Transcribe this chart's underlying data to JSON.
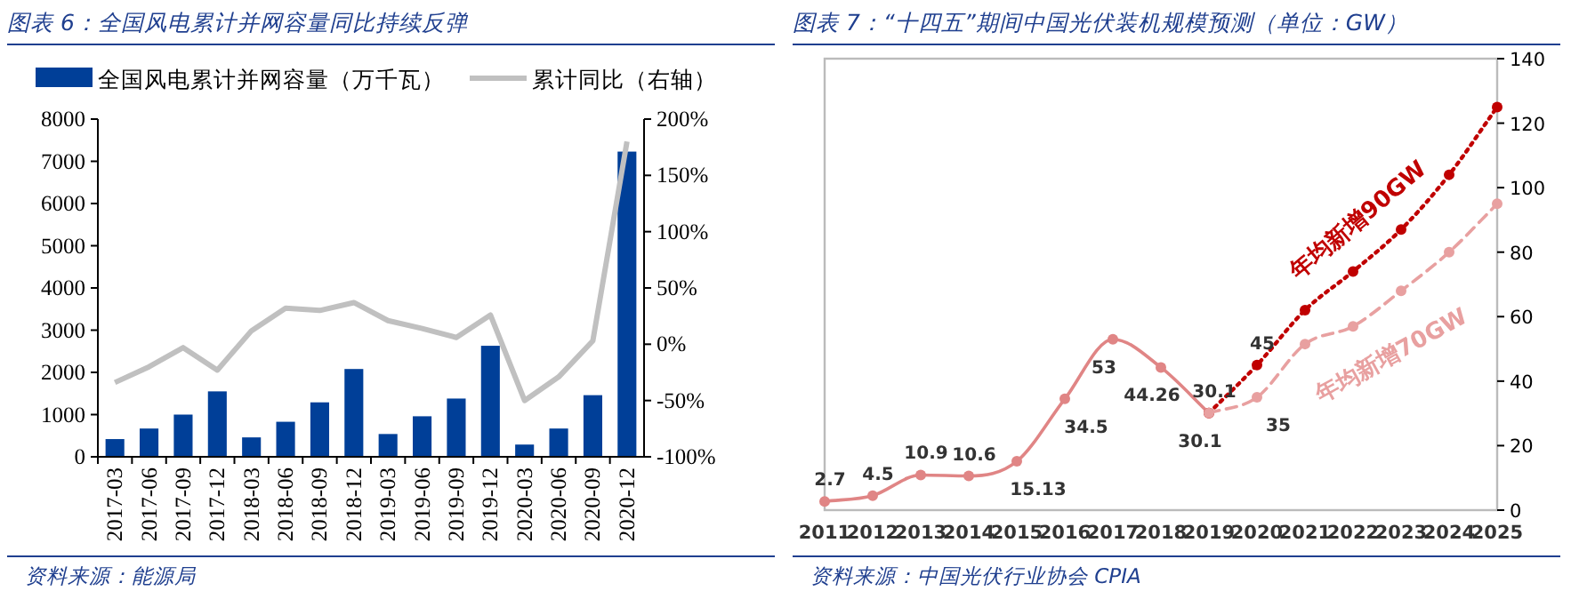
{
  "chart_data": [
    {
      "type": "bar",
      "title": "图表 6：全国风电累计并网容量同比持续反弹",
      "annotations": [
        "资料来源：能源局"
      ],
      "categories": [
        "2017-03",
        "2017-06",
        "2017-09",
        "2017-12",
        "2018-03",
        "2018-06",
        "2018-09",
        "2018-12",
        "2019-03",
        "2019-06",
        "2019-09",
        "2019-12",
        "2020-03",
        "2020-06",
        "2020-09",
        "2020-12"
      ],
      "series": [
        {
          "name": "全国风电累计并网容量（万千瓦）",
          "color": "#003f98",
          "type": "bar",
          "values": [
            420,
            670,
            1000,
            1550,
            460,
            830,
            1290,
            2080,
            540,
            960,
            1380,
            2630,
            290,
            670,
            1460,
            7230
          ]
        },
        {
          "name": "累计同比（右轴）",
          "color": "#c0c0c0",
          "type": "line",
          "axis": "y2",
          "marker": "none",
          "values": [
            -34,
            -20,
            -3,
            -23,
            12,
            32,
            30,
            37,
            21,
            14,
            6,
            26,
            -50,
            -29,
            3,
            180
          ]
        }
      ],
      "ylim": [
        0,
        8000
      ],
      "yticks": [
        0,
        1000,
        2000,
        3000,
        4000,
        5000,
        6000,
        7000,
        8000
      ],
      "y2lim": [
        -100,
        200
      ],
      "y2ticks": [
        {
          "value": -100,
          "label": "-100%"
        },
        {
          "value": -50,
          "label": "-50%"
        },
        {
          "value": 0,
          "label": "0%"
        },
        {
          "value": 50,
          "label": "50%"
        },
        {
          "value": 100,
          "label": "100%"
        },
        {
          "value": 150,
          "label": "150%"
        },
        {
          "value": 200,
          "label": "200%"
        }
      ],
      "legend": "top"
    },
    {
      "type": "line",
      "title": "图表 7：“十四五”期间中国光伏装机规模预测（单位：GW）",
      "annotations": [
        "资料来源：中国光伏行业协会 CPIA"
      ],
      "x": [
        2011,
        2012,
        2013,
        2014,
        2015,
        2016,
        2017,
        2018,
        2019
      ],
      "series": [
        {
          "color": "#e08585",
          "axis": "y2",
          "line_style": "solid",
          "marker": "circle",
          "values": [
            2.7,
            4.5,
            10.9,
            10.6,
            15.13,
            34.5,
            53,
            44.26,
            30.1
          ],
          "value_labels": [
            "2.7",
            "4.5",
            "10.9",
            "10.6",
            "15.13",
            "34.5",
            "53",
            "44.26",
            "30.1"
          ]
        },
        {
          "name": "年均新增90GW",
          "color": "#c00000",
          "axis": "y2",
          "line_style": "dotted",
          "marker": "circle",
          "x": [
            2019,
            2020,
            2021,
            2022,
            2023,
            2024,
            2025
          ],
          "values": [
            30.1,
            45,
            62,
            74,
            87,
            104,
            125
          ],
          "value_labels": [
            "30.1",
            "45",
            null,
            null,
            null,
            null,
            null
          ]
        },
        {
          "name": "年均新增70GW",
          "color": "#e8a0a0",
          "axis": "y2",
          "line_style": "dashed",
          "marker": "circle",
          "x": [
            2019,
            2020,
            2021,
            2022,
            2023,
            2024,
            2025
          ],
          "values": [
            30.1,
            35,
            51.5,
            57,
            68,
            80,
            95
          ],
          "value_labels": [
            null,
            "35",
            null,
            null,
            null,
            null,
            null
          ]
        }
      ],
      "xlim": [
        2011,
        2025
      ],
      "xticks": [
        2011,
        2012,
        2013,
        2014,
        2015,
        2016,
        2017,
        2018,
        2019,
        2020,
        2021,
        2022,
        2023,
        2024,
        2025
      ],
      "y2lim": [
        0,
        140
      ],
      "y2ticks": [
        0,
        20,
        40,
        60,
        80,
        100,
        120,
        140
      ]
    }
  ]
}
